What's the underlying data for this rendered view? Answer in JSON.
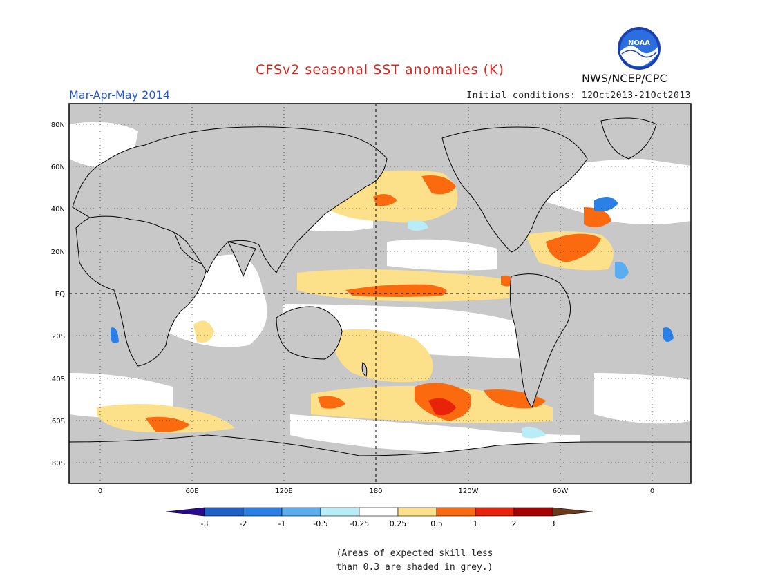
{
  "title": "CFSv2 seasonal SST anomalies (K)",
  "season": "Mar-Apr-May 2014",
  "initial_conditions": "Initial conditions: 12Oct2013-21Oct2013",
  "agency": "NWS/NCEP/CPC",
  "logo_text": "NOAA",
  "note": {
    "line1": "(Areas of expected skill less",
    "line2": "than 0.3 are shaded in grey.)"
  },
  "lat_labels": [
    "80N",
    "60N",
    "40N",
    "20N",
    "EQ",
    "20S",
    "40S",
    "60S",
    "80S"
  ],
  "lon_labels": [
    "0",
    "60E",
    "120E",
    "180",
    "120W",
    "60W",
    "0"
  ],
  "colorbar": {
    "colors": [
      "#2a0a8e",
      "#1e5fc8",
      "#2b80e8",
      "#5aaef0",
      "#b8ecf6",
      "#ffffff",
      "#fde08a",
      "#fc6a0f",
      "#e8230a",
      "#a80000",
      "#6b3a1a"
    ],
    "labels": [
      "-3",
      "-2",
      "-1",
      "-0.5",
      "-0.25",
      "0.25",
      "0.5",
      "1",
      "2",
      "3"
    ]
  },
  "colors": {
    "grey": "#c8c8c8",
    "light_orange": "#fde08a",
    "orange": "#fc6a0f",
    "red": "#e8230a",
    "light_blue": "#b8ecf6",
    "blue": "#2b80e8"
  }
}
